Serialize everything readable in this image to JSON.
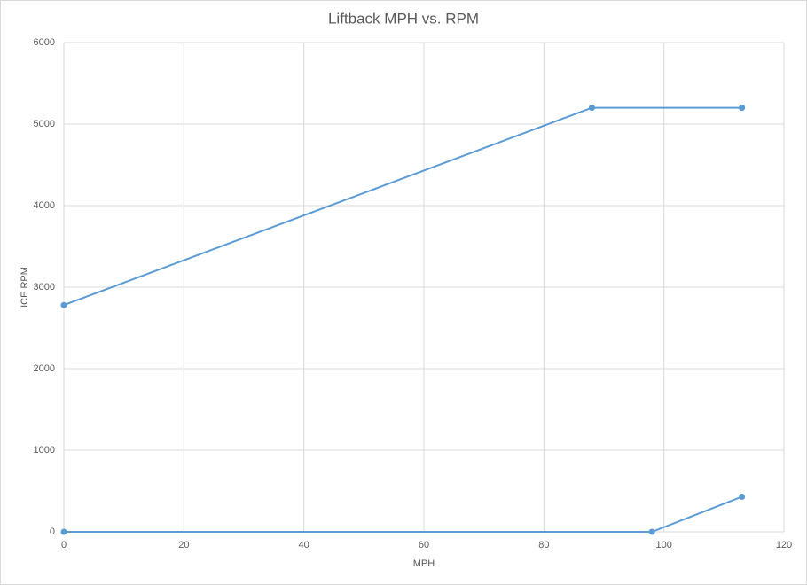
{
  "chart_data": {
    "type": "scatter_line",
    "title": "Liftback MPH vs. RPM",
    "xlabel": "MPH",
    "ylabel": "ICE RPM",
    "series": [
      {
        "color": "#5b9bd5",
        "x": [
          0,
          88,
          113
        ],
        "values": [
          2780,
          5200,
          5200
        ]
      },
      {
        "color": "#5b9bd5",
        "x": [
          0,
          98,
          113
        ],
        "values": [
          0,
          0,
          430
        ]
      }
    ],
    "xlim": [
      0,
      120
    ],
    "xticks": [
      0,
      20,
      40,
      60,
      80,
      100,
      120
    ],
    "ylim": [
      0,
      6000
    ],
    "yticks": [
      0,
      1000,
      2000,
      3000,
      4000,
      5000,
      6000
    ],
    "grid": true
  }
}
